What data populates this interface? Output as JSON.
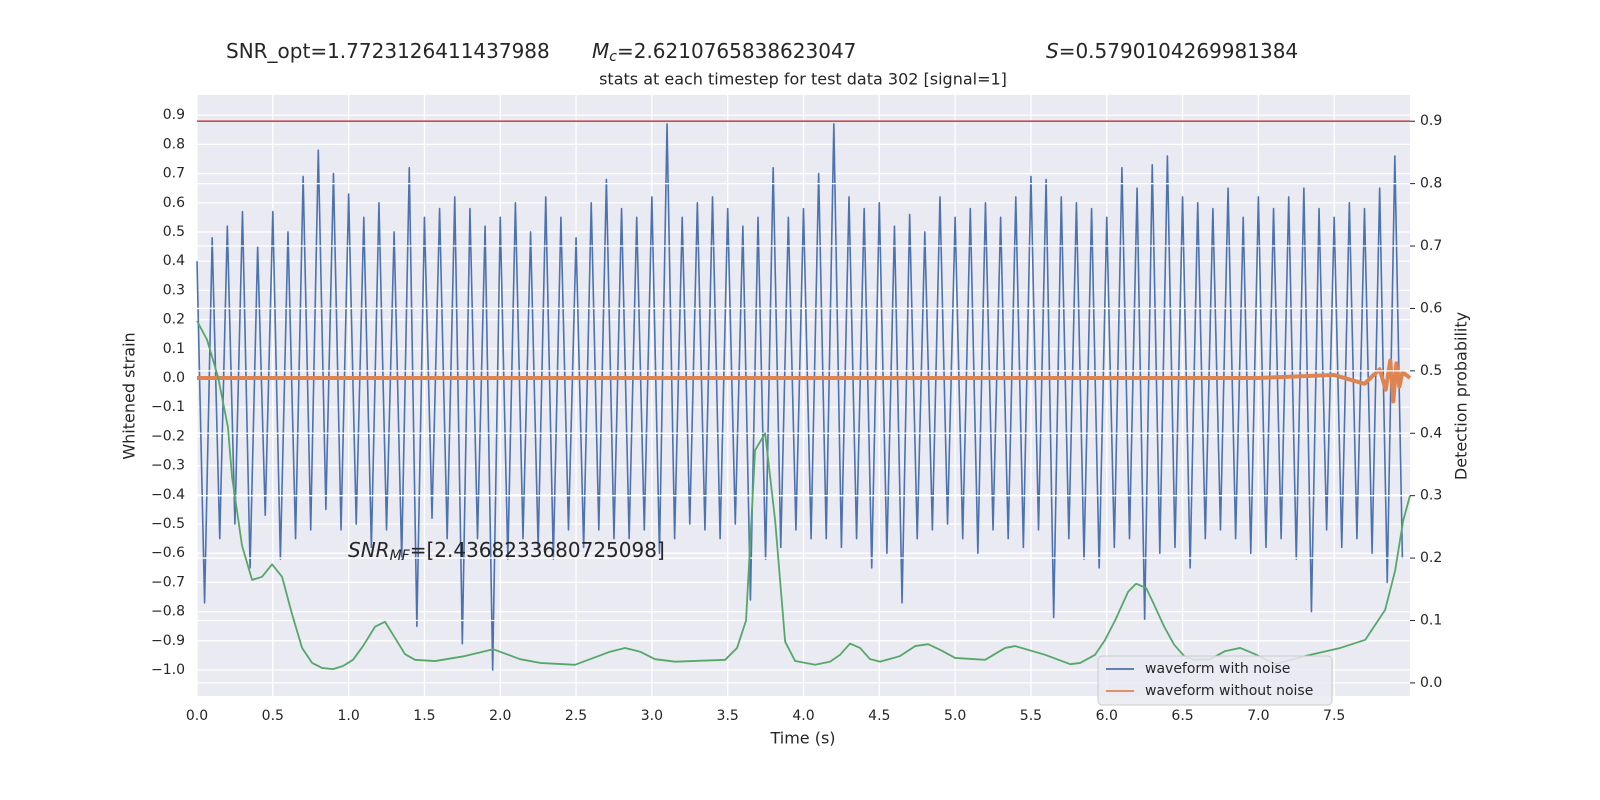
{
  "chart_data": {
    "type": "line",
    "title": "stats at each timestep for test data 302 [signal=1]",
    "xlabel": "Time (s)",
    "ylabel": "Whitened strain",
    "y2label": "Detection probability",
    "annotations": [
      {
        "text": "SNR_opt=1.7723126411437988"
      },
      {
        "symbol": "M",
        "sub": "c",
        "text": "=2.6210765838623047"
      },
      {
        "symbol": "S",
        "text": "=0.5790104269981384"
      },
      {
        "symbol": "SNR",
        "sub": "MF",
        "text": "=[2.4368233680725098]"
      }
    ],
    "xlim": [
      0,
      8.0
    ],
    "ylim": [
      -1.089,
      0.969
    ],
    "y2lim": [
      -0.021,
      0.942
    ],
    "xticks": [
      {
        "value": 0,
        "label": "0.0"
      },
      0.5,
      {
        "value": 1,
        "label": "1.0"
      },
      1.5,
      {
        "value": 2,
        "label": "2.0"
      },
      2.5,
      {
        "value": 3,
        "label": "3.0"
      },
      3.5,
      {
        "value": 4,
        "label": "4.0"
      },
      4.5,
      {
        "value": 5,
        "label": "5.0"
      },
      5.5,
      {
        "value": 6,
        "label": "6.0"
      },
      6.5,
      {
        "value": 7,
        "label": "7.0"
      },
      7.5
    ],
    "yticks": [
      {
        "value": -1.0,
        "label": "−1.0"
      },
      {
        "value": -0.9,
        "label": "−0.9"
      },
      {
        "value": -0.8,
        "label": "−0.8"
      },
      {
        "value": -0.7,
        "label": "−0.7"
      },
      {
        "value": -0.6,
        "label": "−0.6"
      },
      {
        "value": -0.5,
        "label": "−0.5"
      },
      {
        "value": -0.4,
        "label": "−0.4"
      },
      {
        "value": -0.3,
        "label": "−0.3"
      },
      {
        "value": -0.2,
        "label": "−0.2"
      },
      {
        "value": -0.1,
        "label": "−0.1"
      },
      {
        "value": 0,
        "label": "0.0"
      },
      0.1,
      0.2,
      0.3,
      0.4,
      0.5,
      0.6,
      0.7,
      0.8,
      0.9
    ],
    "y2ticks": [
      {
        "value": 0,
        "label": "0.0"
      },
      0.1,
      0.2,
      0.3,
      0.4,
      0.5,
      0.6,
      0.7,
      0.8,
      0.9
    ],
    "grid": true,
    "legend": "lower right",
    "hlines": [
      {
        "y": 0.9,
        "color": "#c44e52",
        "axis": "y2"
      }
    ],
    "series": [
      {
        "name": "waveform with noise",
        "color": "#4c72b0",
        "x": [
          0,
          0.05,
          0.1,
          0.15,
          0.2,
          0.25,
          0.3,
          0.35,
          0.4,
          0.45,
          0.5,
          0.55,
          0.6,
          0.65,
          0.7,
          0.75,
          0.8,
          0.85,
          0.9,
          0.95,
          1,
          1.05,
          1.1,
          1.15,
          1.2,
          1.25,
          1.3,
          1.35,
          1.4,
          1.45,
          1.5,
          1.55,
          1.6,
          1.65,
          1.7,
          1.75,
          1.8,
          1.85,
          1.9,
          1.95,
          2,
          2.05,
          2.1,
          2.15,
          2.2,
          2.25,
          2.3,
          2.35,
          2.4,
          2.45,
          2.5,
          2.55,
          2.6,
          2.65,
          2.7,
          2.75,
          2.8,
          2.85,
          2.9,
          2.95,
          3,
          3.05,
          3.1,
          3.15,
          3.2,
          3.25,
          3.3,
          3.35,
          3.4,
          3.45,
          3.5,
          3.55,
          3.6,
          3.65,
          3.7,
          3.75,
          3.8,
          3.85,
          3.9,
          3.95,
          4,
          4.05,
          4.1,
          4.15,
          4.2,
          4.25,
          4.3,
          4.35,
          4.4,
          4.45,
          4.5,
          4.55,
          4.6,
          4.65,
          4.7,
          4.75,
          4.8,
          4.85,
          4.9,
          4.95,
          5,
          5.05,
          5.1,
          5.15,
          5.2,
          5.25,
          5.3,
          5.35,
          5.4,
          5.45,
          5.5,
          5.55,
          5.6,
          5.65,
          5.7,
          5.75,
          5.8,
          5.85,
          5.9,
          5.95,
          6,
          6.05,
          6.1,
          6.15,
          6.2,
          6.25,
          6.3,
          6.35,
          6.4,
          6.45,
          6.5,
          6.55,
          6.6,
          6.65,
          6.7,
          6.75,
          6.8,
          6.85,
          6.9,
          6.95,
          7,
          7.05,
          7.1,
          7.15,
          7.2,
          7.25,
          7.3,
          7.35,
          7.4,
          7.45,
          7.5,
          7.55,
          7.6,
          7.65,
          7.7,
          7.75,
          7.8,
          7.85,
          7.9,
          7.95
        ],
        "values": [
          0.4,
          -0.77,
          0.48,
          -0.55,
          0.52,
          -0.5,
          0.57,
          -0.65,
          0.45,
          -0.47,
          0.57,
          -0.62,
          0.5,
          -0.55,
          0.69,
          -0.52,
          0.78,
          -0.45,
          0.7,
          -0.52,
          0.63,
          -0.5,
          0.55,
          -0.58,
          0.6,
          -0.52,
          0.5,
          -0.62,
          0.72,
          -0.85,
          0.55,
          -0.48,
          0.58,
          -0.55,
          0.62,
          -0.91,
          0.58,
          -0.55,
          0.52,
          -1.0,
          0.55,
          -0.62,
          0.6,
          -0.55,
          0.5,
          -0.58,
          0.62,
          -0.62,
          0.55,
          -0.52,
          0.48,
          -0.58,
          0.6,
          -0.52,
          0.68,
          -0.55,
          0.58,
          -0.55,
          0.55,
          -0.52,
          0.62,
          -0.6,
          0.87,
          -0.55,
          0.55,
          -0.5,
          0.6,
          -0.52,
          0.62,
          -0.55,
          0.58,
          -0.5,
          0.52,
          -0.76,
          0.55,
          -0.62,
          0.72,
          -0.58,
          0.55,
          -0.52,
          0.58,
          -0.55,
          0.7,
          -0.55,
          0.87,
          -0.58,
          0.62,
          -0.55,
          0.58,
          -0.65,
          0.6,
          -0.6,
          0.52,
          -0.77,
          0.56,
          -0.55,
          0.5,
          -0.52,
          0.62,
          -0.5,
          0.55,
          -0.55,
          0.58,
          -0.6,
          0.6,
          -0.52,
          0.55,
          -0.55,
          0.62,
          -0.58,
          0.69,
          -0.52,
          0.68,
          -0.82,
          0.62,
          -0.55,
          0.6,
          -0.62,
          0.58,
          -0.65,
          0.55,
          -0.58,
          0.72,
          -0.55,
          0.65,
          -0.83,
          0.73,
          -0.6,
          0.76,
          -0.58,
          0.62,
          -0.65,
          0.6,
          -0.55,
          0.58,
          -0.52,
          0.65,
          -0.55,
          0.55,
          -0.6,
          0.62,
          -0.58,
          0.58,
          -0.55,
          0.62,
          -0.62,
          0.65,
          -0.8,
          0.58,
          -0.52,
          0.55,
          -0.58,
          0.6,
          -0.55,
          0.58,
          -0.6,
          0.65,
          -0.7,
          0.76,
          -0.62
        ]
      },
      {
        "name": "waveform without noise",
        "color": "#dd8452",
        "x": [
          0,
          1,
          2,
          3,
          4,
          5,
          6,
          7,
          7.5,
          7.7,
          7.8,
          7.84,
          7.87,
          7.89,
          7.91,
          7.93,
          7.95,
          8.0
        ],
        "values": [
          0,
          0,
          0,
          0,
          0,
          0,
          0,
          0,
          0.01,
          -0.02,
          0.03,
          -0.04,
          0.06,
          -0.08,
          0.05,
          -0.03,
          0.02,
          0
        ]
      },
      {
        "color": "#55a868",
        "axis": "y2",
        "x": [
          0,
          0.066,
          0.139,
          0.204,
          0.231,
          0.297,
          0.363,
          0.429,
          0.495,
          0.561,
          0.627,
          0.693,
          0.759,
          0.825,
          0.897,
          0.963,
          1.029,
          1.095,
          1.174,
          1.24,
          1.306,
          1.372,
          1.438,
          1.57,
          1.768,
          1.953,
          2.131,
          2.263,
          2.493,
          2.724,
          2.823,
          2.922,
          3.021,
          3.153,
          3.483,
          3.562,
          3.621,
          3.681,
          3.747,
          3.813,
          3.879,
          3.945,
          4.077,
          4.176,
          4.241,
          4.307,
          4.373,
          4.439,
          4.505,
          4.637,
          4.736,
          4.822,
          4.901,
          5.0,
          5.198,
          5.33,
          5.396,
          5.594,
          5.759,
          5.825,
          5.923,
          5.989,
          6.055,
          6.141,
          6.194,
          6.26,
          6.313,
          6.379,
          6.445,
          6.511,
          6.577,
          6.682,
          6.781,
          6.88,
          6.979,
          7.111,
          7.309,
          7.54,
          7.705,
          7.836,
          7.902,
          7.955,
          8.0
        ],
        "values": [
          0.58,
          0.55,
          0.49,
          0.41,
          0.33,
          0.22,
          0.165,
          0.17,
          0.19,
          0.17,
          0.11,
          0.056,
          0.032,
          0.024,
          0.022,
          0.027,
          0.037,
          0.059,
          0.09,
          0.098,
          0.072,
          0.046,
          0.037,
          0.035,
          0.043,
          0.054,
          0.038,
          0.032,
          0.029,
          0.05,
          0.056,
          0.05,
          0.038,
          0.034,
          0.037,
          0.056,
          0.1,
          0.373,
          0.4,
          0.26,
          0.066,
          0.035,
          0.029,
          0.034,
          0.045,
          0.063,
          0.056,
          0.038,
          0.034,
          0.043,
          0.059,
          0.062,
          0.053,
          0.04,
          0.037,
          0.056,
          0.059,
          0.045,
          0.03,
          0.032,
          0.045,
          0.069,
          0.1,
          0.146,
          0.159,
          0.152,
          0.125,
          0.09,
          0.061,
          0.043,
          0.037,
          0.038,
          0.051,
          0.056,
          0.046,
          0.03,
          0.043,
          0.056,
          0.069,
          0.117,
          0.18,
          0.26,
          0.3
        ]
      }
    ]
  }
}
